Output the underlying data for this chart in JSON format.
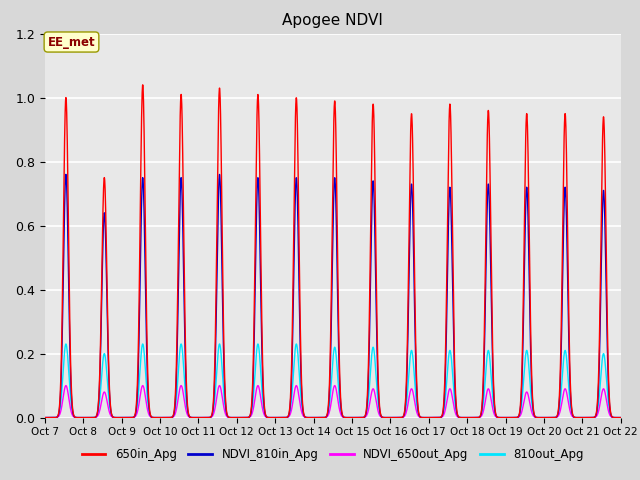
{
  "title": "Apogee NDVI",
  "title_fontsize": 11,
  "fig_bg_color": "#d8d8d8",
  "plot_bg_color": "#e8e8e8",
  "ylim": [
    0.0,
    1.2
  ],
  "yticks": [
    0.0,
    0.2,
    0.4,
    0.6,
    0.8,
    1.0,
    1.2
  ],
  "xlabel": "",
  "ylabel": "",
  "series_colors": {
    "650in_Apg": "#ff0000",
    "NDVI_810in_Apg": "#0000cc",
    "NDVI_650out_Apg": "#ff00ff",
    "810out_Apg": "#00e5ff"
  },
  "series_linewidth": 1.0,
  "annotation": "EE_met",
  "x_tick_labels": [
    "Oct 7",
    "Oct 8",
    "Oct 9",
    "Oct 10",
    "Oct 11",
    "Oct 12",
    "Oct 13",
    "Oct 14",
    "Oct 15",
    "Oct 16",
    "Oct 17",
    "Oct 18",
    "Oct 19",
    "Oct 20",
    "Oct 21",
    "Oct 22"
  ],
  "peak_650in": [
    1.0,
    0.75,
    1.04,
    1.01,
    1.03,
    1.01,
    1.0,
    0.99,
    0.98,
    0.95,
    0.98,
    0.96,
    0.95,
    0.95,
    0.94,
    0.0
  ],
  "peak_810in": [
    0.76,
    0.64,
    0.75,
    0.75,
    0.76,
    0.75,
    0.75,
    0.75,
    0.74,
    0.73,
    0.72,
    0.73,
    0.72,
    0.72,
    0.71,
    0.0
  ],
  "peak_650out": [
    0.1,
    0.08,
    0.1,
    0.1,
    0.1,
    0.1,
    0.1,
    0.1,
    0.09,
    0.09,
    0.09,
    0.09,
    0.08,
    0.09,
    0.09,
    0.0
  ],
  "peak_810out": [
    0.23,
    0.2,
    0.23,
    0.23,
    0.23,
    0.23,
    0.23,
    0.22,
    0.22,
    0.21,
    0.21,
    0.21,
    0.21,
    0.21,
    0.2,
    0.0
  ]
}
